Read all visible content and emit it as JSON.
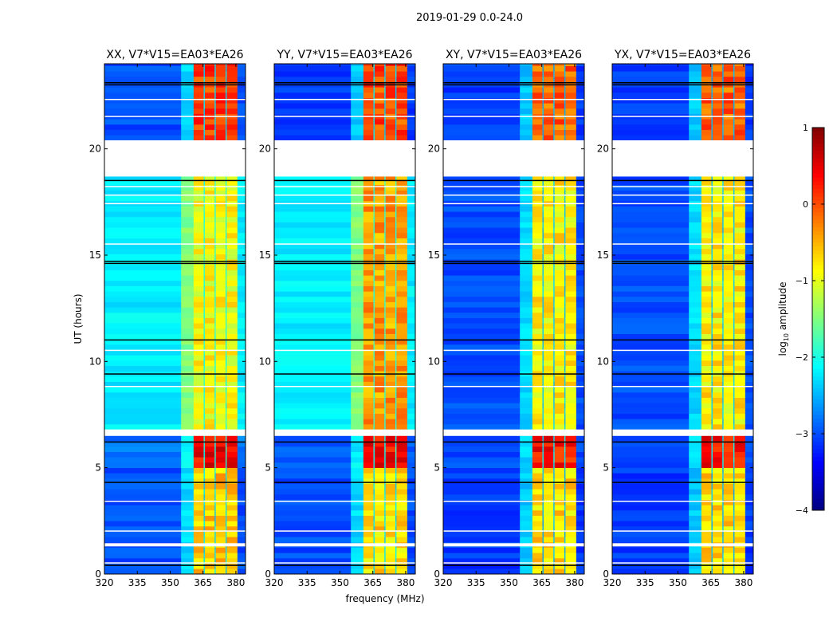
{
  "chart_data": {
    "type": "heatmap",
    "title": "2019-01-29 0.0-24.0",
    "xlabel": "frequency (MHz)",
    "ylabel": "UT (hours)",
    "xlim": [
      320,
      384.4
    ],
    "ylim": [
      0,
      24
    ],
    "xticks": [
      "320",
      "335",
      "350",
      "365",
      "380"
    ],
    "xtick_values": [
      320,
      335,
      350,
      365,
      380
    ],
    "yticks": [
      "0",
      "5",
      "10",
      "15",
      "20"
    ],
    "ytick_values": [
      0,
      5,
      10,
      15,
      20
    ],
    "colorbar": {
      "label_main": "log",
      "label_sub": "10",
      "label_rest": " amplitude",
      "vmin": -4,
      "vmax": 1,
      "ticks": [
        "−4",
        "−3",
        "−2",
        "−1",
        "0",
        "1"
      ],
      "tick_values": [
        -4,
        -3,
        -2,
        -1,
        0,
        1
      ],
      "colormap": "jet"
    },
    "freq_bands": [
      {
        "from": 320,
        "to": 355,
        "kind": "bg"
      },
      {
        "from": 355,
        "to": 360.7,
        "kind": "ramp"
      },
      {
        "from": 360.7,
        "to": 365.3,
        "kind": "chan"
      },
      {
        "from": 365.3,
        "to": 365.8,
        "kind": "gap"
      },
      {
        "from": 365.8,
        "to": 370.3,
        "kind": "chan"
      },
      {
        "from": 370.3,
        "to": 370.8,
        "kind": "gap"
      },
      {
        "from": 370.8,
        "to": 375.3,
        "kind": "chan"
      },
      {
        "from": 375.3,
        "to": 375.8,
        "kind": "gap"
      },
      {
        "from": 375.8,
        "to": 380.7,
        "kind": "chan"
      },
      {
        "from": 380.7,
        "to": 384.4,
        "kind": "bg"
      }
    ],
    "flagged_hours": [
      [
        18.7,
        20.4
      ],
      [
        6.5,
        6.8
      ],
      [
        1.3,
        1.45
      ],
      [
        0.5,
        0.55
      ],
      [
        2.0,
        2.05
      ],
      [
        3.4,
        3.45
      ],
      [
        8.8,
        8.85
      ],
      [
        10.5,
        10.55
      ],
      [
        15.5,
        15.55
      ],
      [
        17.4,
        17.45
      ],
      [
        21.5,
        21.55
      ],
      [
        22.3,
        22.35
      ],
      [
        18.2,
        18.25
      ],
      [
        17.8,
        17.85
      ]
    ],
    "dark_rows_hours": [
      0.4,
      4.3,
      6.2,
      9.4,
      11.0,
      14.6,
      14.7,
      18.5,
      23.0,
      23.1
    ],
    "panels": [
      {
        "title": "XX, V7*V15=EA03*EA26",
        "segments": [
          {
            "from": 0,
            "to": 5,
            "bg": -3.0,
            "chan": -0.6,
            "gap": -2.3
          },
          {
            "from": 5,
            "to": 6.5,
            "bg": -2.8,
            "chan": 0.4,
            "gap": -2.0
          },
          {
            "from": 6.8,
            "to": 18.7,
            "bg": -2.2,
            "chan": -0.9,
            "gap": -2.0
          },
          {
            "from": 20.4,
            "to": 24,
            "bg": -3.0,
            "chan": 0.1,
            "gap": -2.3
          }
        ]
      },
      {
        "title": "YY, V7*V15=EA03*EA26",
        "segments": [
          {
            "from": 0,
            "to": 5,
            "bg": -3.0,
            "chan": -0.7,
            "gap": -2.3
          },
          {
            "from": 5,
            "to": 6.5,
            "bg": -2.9,
            "chan": 0.4,
            "gap": -2.0
          },
          {
            "from": 6.8,
            "to": 18.7,
            "bg": -2.2,
            "chan": -0.4,
            "gap": -1.9
          },
          {
            "from": 20.4,
            "to": 24,
            "bg": -3.1,
            "chan": 0.0,
            "gap": -2.3
          }
        ]
      },
      {
        "title": "XY, V7*V15=EA03*EA26",
        "segments": [
          {
            "from": 0,
            "to": 5,
            "bg": -3.1,
            "chan": -0.7,
            "gap": -2.5
          },
          {
            "from": 5,
            "to": 6.5,
            "bg": -3.0,
            "chan": 0.3,
            "gap": -2.2
          },
          {
            "from": 6.8,
            "to": 18.7,
            "bg": -3.0,
            "chan": -0.8,
            "gap": -2.4
          },
          {
            "from": 20.4,
            "to": 24,
            "bg": -3.1,
            "chan": -0.1,
            "gap": -2.5
          }
        ]
      },
      {
        "title": "YX, V7*V15=EA03*EA26",
        "segments": [
          {
            "from": 0,
            "to": 5,
            "bg": -3.1,
            "chan": -0.7,
            "gap": -2.5
          },
          {
            "from": 5,
            "to": 6.5,
            "bg": -3.0,
            "chan": 0.3,
            "gap": -2.2
          },
          {
            "from": 6.8,
            "to": 18.7,
            "bg": -3.0,
            "chan": -0.8,
            "gap": -2.4
          },
          {
            "from": 20.4,
            "to": 24,
            "bg": -3.1,
            "chan": -0.1,
            "gap": -2.5
          }
        ]
      }
    ]
  }
}
